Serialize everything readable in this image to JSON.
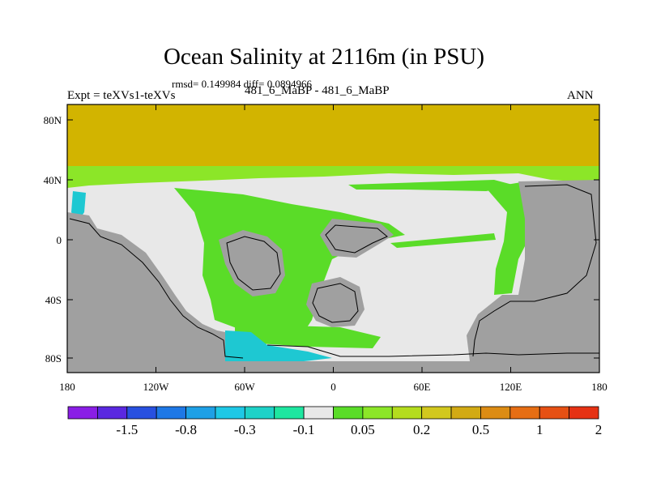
{
  "title": "Ocean Salinity at 2116m (in PSU)",
  "stats": "rmsd= 0.149984 diff= 0.0894966",
  "left_label": "Expt = teXVs1-teXVs",
  "center_label": "481_6_MaBP - 481_6_MaBP",
  "right_label": "ANN",
  "x_ticks": [
    "180",
    "120W",
    "60W",
    "0",
    "60E",
    "120E",
    "180"
  ],
  "y_ticks": [
    "80N",
    "40N",
    "0",
    "40S",
    "80S"
  ],
  "colorbar": {
    "colors": [
      "#8a1ee6",
      "#5a28e0",
      "#2850e0",
      "#1e78e6",
      "#1ea0e6",
      "#1ec8e6",
      "#1ed2c8",
      "#1ee6a0",
      "#e8e8e8",
      "#5adc28",
      "#8ce628",
      "#b4dc1e",
      "#d2c81e",
      "#d2aa14",
      "#dc8c14",
      "#e66e14",
      "#e65014",
      "#e63214"
    ],
    "labels": [
      "-1.5",
      "-0.8",
      "-0.3",
      "-0.1",
      "0.05",
      "0.2",
      "0.5",
      "1",
      "2"
    ]
  },
  "legend_colors": {
    "land": "#a0a0a0",
    "high_lat": "#d2b400",
    "near_zero": "#e8e8e8",
    "positive": "#5adc28",
    "negative": "#1ec8d2"
  }
}
